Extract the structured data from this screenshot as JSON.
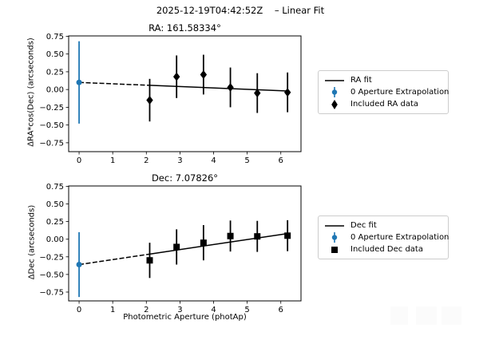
{
  "figure": {
    "title": "2025-12-19T04:42:52Z    – Linear Fit",
    "background": "#ffffff",
    "accent_blue": "#1f77b4",
    "fg": "#000000",
    "legend_border": "#cccccc",
    "watermark_color": "#fbfbfb"
  },
  "chart_data": [
    {
      "type": "scatter",
      "title": "RA: 161.58334°",
      "xlabel": "",
      "ylabel": "ΔRA*cos(Dec) (arcseconds)",
      "xlim": [
        -0.31,
        6.6
      ],
      "ylim": [
        -0.875,
        0.755
      ],
      "grid": false,
      "xticks": [
        0,
        1,
        2,
        3,
        4,
        5,
        6
      ],
      "xtick_labels": [
        "0",
        "1",
        "2",
        "3",
        "4",
        "5",
        "6"
      ],
      "yticks": [
        0.75,
        0.5,
        0.25,
        0,
        -0.25,
        -0.5,
        -0.75
      ],
      "ytick_labels": [
        "0.75",
        "0.50",
        "0.25",
        "0.00",
        "−0.25",
        "−0.50",
        "−0.75"
      ],
      "extrapolation": {
        "name": "0 Aperture Extrapolation",
        "x": 0,
        "y": 0.1,
        "yerr": 0.58,
        "marker": "circle",
        "color": "#1f77b4"
      },
      "series": [
        {
          "name": "Included RA data",
          "marker": "diamond",
          "color": "#000000",
          "x": [
            2.1,
            2.9,
            3.7,
            4.5,
            5.3,
            6.2
          ],
          "y": [
            -0.15,
            0.18,
            0.21,
            0.03,
            -0.05,
            -0.04
          ],
          "yerr": [
            0.3,
            0.3,
            0.28,
            0.28,
            0.28,
            0.28
          ]
        }
      ],
      "fit": {
        "name": "RA fit",
        "intercept": 0.1,
        "slope": -0.0194,
        "dash_start_x": 0,
        "dash_end_x": 2.1,
        "solid_end_x": 6.2,
        "color": "#000000"
      },
      "legend": [
        "RA fit",
        "0 Aperture Extrapolation",
        "Included RA data"
      ],
      "legend_position": "center right, outside axes"
    },
    {
      "type": "scatter",
      "title": "Dec: 7.07826°",
      "xlabel": "Photometric Aperture (photAp)",
      "ylabel": "ΔDec (arcseconds)",
      "xlim": [
        -0.31,
        6.6
      ],
      "ylim": [
        -0.875,
        0.755
      ],
      "grid": false,
      "xticks": [
        0,
        1,
        2,
        3,
        4,
        5,
        6
      ],
      "xtick_labels": [
        "0",
        "1",
        "2",
        "3",
        "4",
        "5",
        "6"
      ],
      "yticks": [
        0.75,
        0.5,
        0.25,
        0,
        -0.25,
        -0.5,
        -0.75
      ],
      "ytick_labels": [
        "0.75",
        "0.50",
        "0.25",
        "0.00",
        "−0.25",
        "−0.50",
        "−0.75"
      ],
      "extrapolation": {
        "name": "0 Aperture Extrapolation",
        "x": 0,
        "y": -0.36,
        "yerr": 0.46,
        "marker": "circle",
        "color": "#1f77b4"
      },
      "series": [
        {
          "name": "Included Dec data",
          "marker": "square",
          "color": "#000000",
          "x": [
            2.1,
            2.9,
            3.7,
            4.5,
            5.3,
            6.2
          ],
          "y": [
            -0.3,
            -0.11,
            -0.05,
            0.045,
            0.04,
            0.05
          ],
          "yerr": [
            0.25,
            0.25,
            0.25,
            0.22,
            0.22,
            0.22
          ]
        }
      ],
      "fit": {
        "name": "Dec fit",
        "intercept": -0.36,
        "slope": 0.071,
        "dash_start_x": 0,
        "dash_end_x": 2.1,
        "solid_end_x": 6.2,
        "color": "#000000"
      },
      "legend": [
        "Dec fit",
        "0 Aperture Extrapolation",
        "Included Dec data"
      ],
      "legend_position": "center right, outside axes"
    }
  ]
}
